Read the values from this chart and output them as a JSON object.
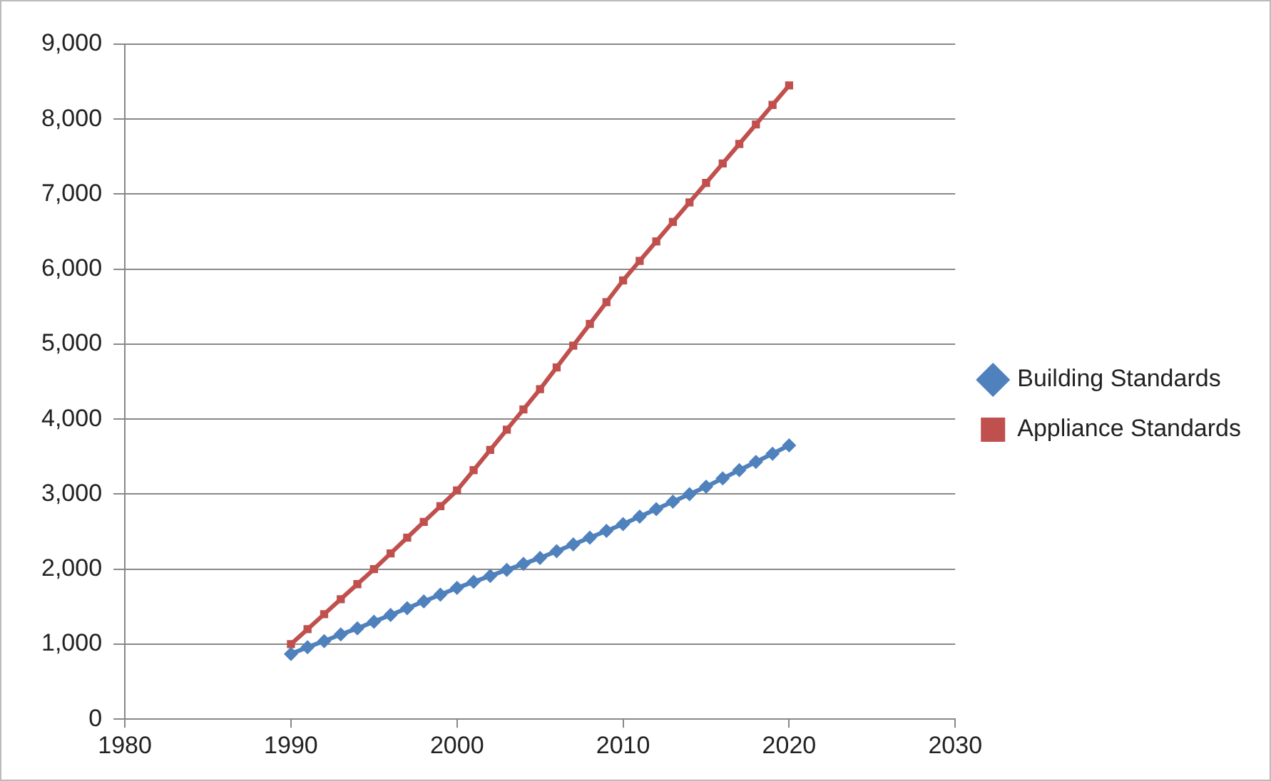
{
  "chart_data": {
    "type": "line",
    "x": [
      1990,
      1991,
      1992,
      1993,
      1994,
      1995,
      1996,
      1997,
      1998,
      1999,
      2000,
      2001,
      2002,
      2003,
      2004,
      2005,
      2006,
      2007,
      2008,
      2009,
      2010,
      2011,
      2012,
      2013,
      2014,
      2015,
      2016,
      2017,
      2018,
      2019,
      2020
    ],
    "series": [
      {
        "name": "Building Standards",
        "color": "#4f81bd",
        "marker": "diamond",
        "values": [
          870,
          960,
          1040,
          1130,
          1210,
          1300,
          1390,
          1480,
          1570,
          1660,
          1750,
          1830,
          1910,
          1990,
          2070,
          2150,
          2240,
          2330,
          2420,
          2510,
          2600,
          2700,
          2800,
          2900,
          3000,
          3100,
          3210,
          3320,
          3430,
          3540,
          3650
        ]
      },
      {
        "name": "Appliance Standards",
        "color": "#c0504d",
        "marker": "square",
        "values": [
          1000,
          1200,
          1400,
          1600,
          1800,
          2000,
          2210,
          2420,
          2630,
          2840,
          3050,
          3320,
          3590,
          3860,
          4130,
          4400,
          4690,
          4980,
          5270,
          5560,
          5850,
          6110,
          6370,
          6630,
          6890,
          7150,
          7410,
          7670,
          7930,
          8190,
          8450
        ]
      }
    ],
    "xlim": [
      1980,
      2030
    ],
    "xticks": [
      1980,
      1990,
      2000,
      2010,
      2020,
      2030
    ],
    "ylim": [
      0,
      9000
    ],
    "yticks": [
      0,
      {
        "value": 1000,
        "label": "1,000"
      },
      {
        "value": 2000,
        "label": "2,000"
      },
      {
        "value": 3000,
        "label": "3,000"
      },
      {
        "value": 4000,
        "label": "4,000"
      },
      {
        "value": 5000,
        "label": "5,000"
      },
      {
        "value": 6000,
        "label": "6,000"
      },
      {
        "value": 7000,
        "label": "7,000"
      },
      {
        "value": 8000,
        "label": "8,000"
      },
      {
        "value": 9000,
        "label": "9,000"
      }
    ],
    "grid": "y",
    "legend": "right",
    "line_style": "solid"
  }
}
